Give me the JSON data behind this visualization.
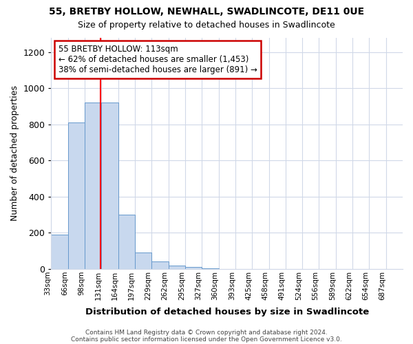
{
  "title1": "55, BRETBY HOLLOW, NEWHALL, SWADLINCOTE, DE11 0UE",
  "title2": "Size of property relative to detached houses in Swadlincote",
  "xlabel": "Distribution of detached houses by size in Swadlincote",
  "ylabel": "Number of detached properties",
  "bin_labels": [
    "33sqm",
    "66sqm",
    "98sqm",
    "131sqm",
    "164sqm",
    "197sqm",
    "229sqm",
    "262sqm",
    "295sqm",
    "327sqm",
    "360sqm",
    "393sqm",
    "425sqm",
    "458sqm",
    "491sqm",
    "524sqm",
    "556sqm",
    "589sqm",
    "622sqm",
    "654sqm",
    "687sqm"
  ],
  "bin_width": 33,
  "bin_starts": [
    16.5,
    49.5,
    82.5,
    115.5,
    148.5,
    181.5,
    214.5,
    247.5,
    280.5,
    313.5,
    346.5,
    379.5,
    412.5,
    445.5,
    478.5,
    511.5,
    544.5,
    577.5,
    610.5,
    643.5,
    676.5
  ],
  "bar_values": [
    190,
    810,
    920,
    920,
    300,
    90,
    40,
    20,
    10,
    5,
    0,
    0,
    0,
    0,
    0,
    0,
    0,
    0,
    0,
    0,
    0
  ],
  "bar_color": "#c8d8ee",
  "bar_edge_color": "#6699cc",
  "red_line_x": 113,
  "annotation_title": "55 BRETBY HOLLOW: 113sqm",
  "annotation_line1": "← 62% of detached houses are smaller (1,453)",
  "annotation_line2": "38% of semi-detached houses are larger (891) →",
  "annotation_box_facecolor": "#ffffff",
  "annotation_box_edgecolor": "#cc0000",
  "footer1": "Contains HM Land Registry data © Crown copyright and database right 2024.",
  "footer2": "Contains public sector information licensed under the Open Government Licence v3.0.",
  "ylim": [
    0,
    1280
  ],
  "yticks": [
    0,
    200,
    400,
    600,
    800,
    1000,
    1200
  ],
  "background_color": "#ffffff",
  "grid_color": "#d0d8e8"
}
